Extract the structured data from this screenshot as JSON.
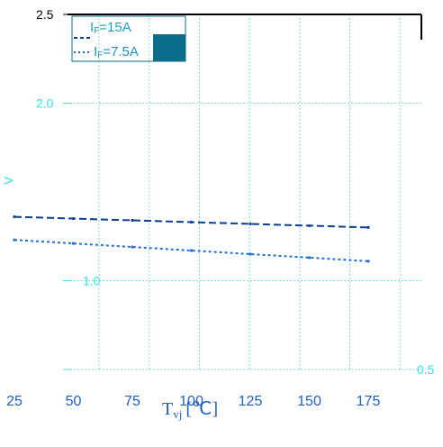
{
  "chart_data": {
    "type": "line",
    "title": "",
    "xlabel": "Tvj [℃]",
    "xlabel_main": "T",
    "xlabel_sub": "vj",
    "xlabel_unit": "[℃]",
    "ylabel": "V",
    "x": [
      25,
      50,
      75,
      100,
      125,
      150,
      175
    ],
    "xticks": [
      "25",
      "50",
      "75",
      "100",
      "125",
      "150",
      "175"
    ],
    "yticks": [
      {
        "value": 2.5,
        "label": "2.5"
      },
      {
        "value": 2.0,
        "label": "2.0"
      },
      {
        "value": 1.0,
        "label": "1.0"
      },
      {
        "value": 0.5,
        "label": "0.5"
      }
    ],
    "xlim": [
      25,
      200
    ],
    "ylim": [
      0.5,
      2.5
    ],
    "grid": true,
    "legend_position": "top-left",
    "series": [
      {
        "name": "IF=15A",
        "values": [
          1.36,
          1.35,
          1.34,
          1.33,
          1.32,
          1.31,
          1.3
        ]
      },
      {
        "name": "IF=7.5A",
        "values": [
          1.23,
          1.21,
          1.19,
          1.17,
          1.15,
          1.13,
          1.11
        ]
      }
    ],
    "legend": {
      "items": [
        {
          "main": "I",
          "sub": "F",
          "rest": "=15A"
        },
        {
          "main": "I",
          "sub": "F",
          "rest": "=7.5A"
        }
      ]
    },
    "colors": {
      "axis": "#000000",
      "grid": "#7fd6d6",
      "ytick": "#33e0e0",
      "xtick": "#1f5fbf",
      "series1": "#0b3d91",
      "series2": "#1f6fd0",
      "legend_bg": "#0a6e8a"
    }
  }
}
